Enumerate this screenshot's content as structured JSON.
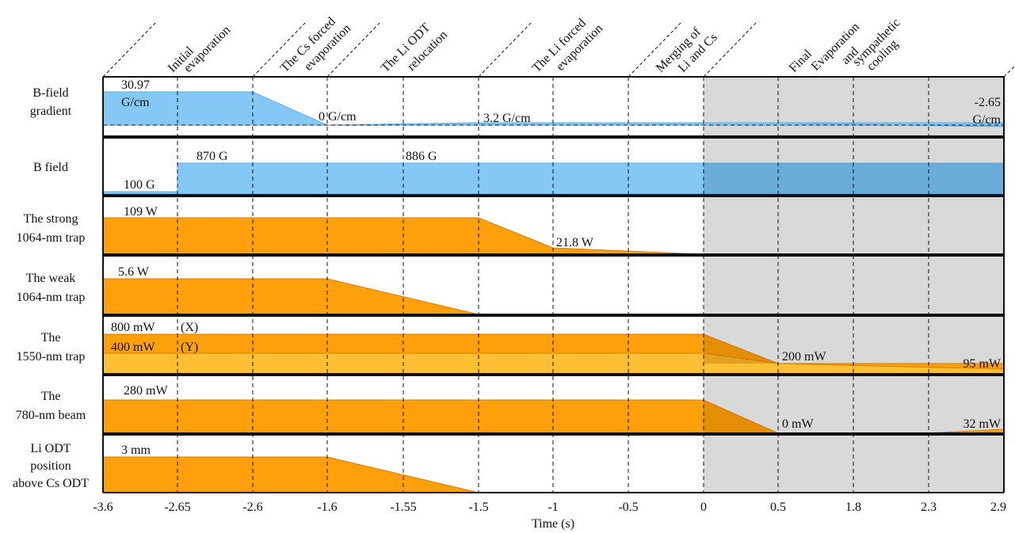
{
  "x_axis": {
    "label": "Time (s)",
    "ticks": [
      "-3.6",
      "-2.65",
      "-2.6",
      "-1.6",
      "-1.55",
      "-1.5",
      "-1",
      "-0.5",
      "0",
      "0.5",
      "1.8",
      "2.3",
      "2.9"
    ]
  },
  "phases": [
    {
      "lines": [
        "Initial",
        "evaporation"
      ]
    },
    {
      "lines": [
        "The Cs forced",
        "evaporation"
      ]
    },
    {
      "lines": [
        "The Li ODT",
        "relocation"
      ]
    },
    {
      "lines": [
        "The Li forced",
        "evaporation"
      ]
    },
    {
      "lines": [
        "Merging of",
        "Li and Cs"
      ]
    },
    {
      "lines": [
        "Final",
        "Evaporation",
        "and",
        "sympathetic",
        "cooling"
      ]
    }
  ],
  "rows": [
    {
      "id": "bgrad",
      "label": [
        "B-field",
        "gradient"
      ],
      "color": "#85c8f5",
      "annotations": [
        "30.97",
        "G/cm",
        "0 G/cm",
        "3.2 G/cm",
        "-2.65",
        "G/cm"
      ]
    },
    {
      "id": "bfield",
      "label": [
        "B field"
      ],
      "color": "#85c8f5",
      "annotations": [
        "870 G",
        "886 G",
        "100 G"
      ]
    },
    {
      "id": "strong",
      "label": [
        "The strong",
        "1064-nm trap"
      ],
      "color": "#fda00c",
      "annotations": [
        "109 W",
        "21.8 W"
      ]
    },
    {
      "id": "weak",
      "label": [
        "The weak",
        "1064-nm trap"
      ],
      "color": "#fda00c",
      "annotations": [
        "5.6 W"
      ]
    },
    {
      "id": "trap1550",
      "label": [
        "The",
        "1550-nm trap"
      ],
      "color": "#fda00c",
      "color2": "#fdbf33",
      "annotations": [
        "800 mW",
        "(X)",
        "400 mW",
        "(Y)",
        "200 mW",
        "95 mW"
      ]
    },
    {
      "id": "beam780",
      "label": [
        "The",
        "780-nm beam"
      ],
      "color": "#fda00c",
      "annotations": [
        "280 mW",
        "0 mW",
        "32 mW"
      ]
    },
    {
      "id": "liodt",
      "label": [
        "Li ODT",
        "position",
        "above Cs ODT"
      ],
      "color": "#fda00c",
      "annotations": [
        "3 mm"
      ]
    }
  ],
  "colors": {
    "shade": "#d9d9d9",
    "blue": "#85c8f5",
    "orange": "#fda00c",
    "light_orange": "#fdbf33"
  }
}
